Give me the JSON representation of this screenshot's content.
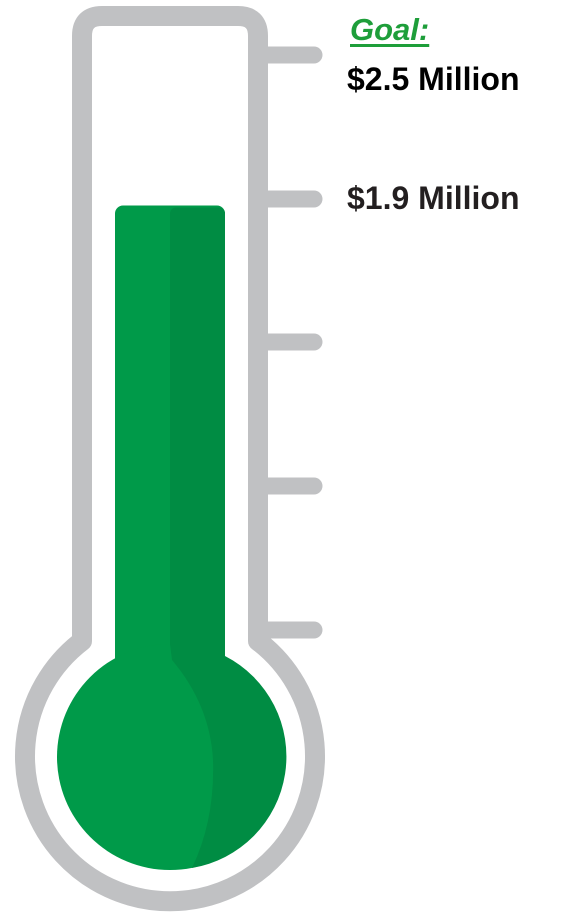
{
  "goal": {
    "title": "Goal:",
    "amount": "$2.5 Million"
  },
  "progress": {
    "raised_label": "$1.9 Million",
    "goal_value_millions": 2.5,
    "raised_value_millions": 1.9,
    "fill_fraction": 0.76
  },
  "colors": {
    "fill": "#009a49",
    "fill_shade": "#008c43",
    "outline": "#c0c1c3",
    "goal_text": "#1e9e3a",
    "amount_text": "#000000",
    "current_text": "#231f20"
  }
}
